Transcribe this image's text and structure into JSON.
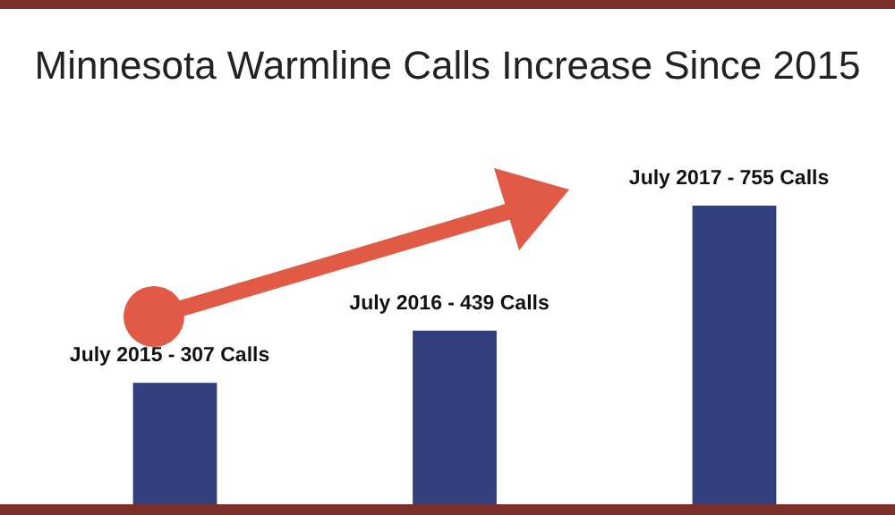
{
  "chart_data": {
    "type": "bar",
    "title": "Minnesota Warmline Calls Increase Since 2015",
    "categories": [
      "July 2015 -",
      "July 2016 -",
      "July 2017 -"
    ],
    "values": [
      307,
      439,
      755
    ],
    "value_labels": [
      "307 Calls",
      "439 Calls",
      "755 Calls"
    ],
    "color": "#333f7c"
  }
}
